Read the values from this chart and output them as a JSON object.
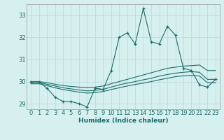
{
  "title": "",
  "xlabel": "Humidex (Indice chaleur)",
  "ylabel": "",
  "bg_color": "#d6f0ef",
  "grid_color": "#c0dede",
  "line_color": "#1a6b6b",
  "xlim": [
    -0.5,
    23.5
  ],
  "ylim": [
    28.75,
    33.5
  ],
  "yticks": [
    29,
    30,
    31,
    32,
    33
  ],
  "xticks": [
    0,
    1,
    2,
    3,
    4,
    5,
    6,
    7,
    8,
    9,
    10,
    11,
    12,
    13,
    14,
    15,
    16,
    17,
    18,
    19,
    20,
    21,
    22,
    23
  ],
  "main_data": [
    30.0,
    30.0,
    29.7,
    29.3,
    29.1,
    29.1,
    29.0,
    28.85,
    29.7,
    29.65,
    30.5,
    32.0,
    32.2,
    31.7,
    33.3,
    31.8,
    31.7,
    32.5,
    32.1,
    30.6,
    30.5,
    29.85,
    29.75,
    30.1
  ],
  "line1_data": [
    30.0,
    30.0,
    29.95,
    29.88,
    29.82,
    29.78,
    29.75,
    29.72,
    29.75,
    29.8,
    29.9,
    30.0,
    30.1,
    30.2,
    30.3,
    30.4,
    30.5,
    30.6,
    30.65,
    30.7,
    30.72,
    30.75,
    30.5,
    30.5
  ],
  "line2_data": [
    29.95,
    29.95,
    29.88,
    29.8,
    29.72,
    29.67,
    29.62,
    29.58,
    29.6,
    29.65,
    29.75,
    29.85,
    29.93,
    30.0,
    30.08,
    30.15,
    30.25,
    30.32,
    30.38,
    30.42,
    30.45,
    30.42,
    30.1,
    30.1
  ],
  "line3_data": [
    29.9,
    29.9,
    29.82,
    29.72,
    29.64,
    29.58,
    29.52,
    29.48,
    29.5,
    29.55,
    29.64,
    29.72,
    29.8,
    29.87,
    29.93,
    30.0,
    30.08,
    30.15,
    30.22,
    30.26,
    30.28,
    30.25,
    29.95,
    29.95
  ]
}
